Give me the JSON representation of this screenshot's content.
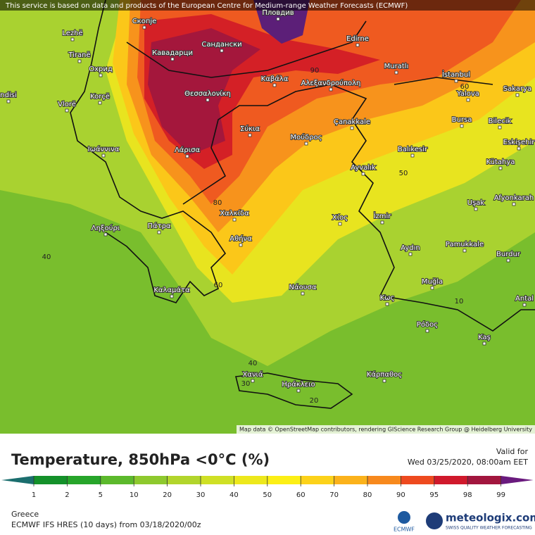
{
  "attribution_top": "This service is based on data and products of the European Centre for Medium-range Weather Forecasts (ECMWF)",
  "attribution_bottom": "Map data © OpenStreetMap contributors, rendering GIScience Research Group @ Heidelberg University",
  "cities": [
    "Lezhë",
    "Скопје",
    "Пловдив",
    "Edirne",
    "Tiranë",
    "Кавадарци",
    "Сандански",
    "Охрид",
    "Muratlı",
    "İstanbul",
    "Καβάλα",
    "Αλεξανδρούπολη",
    "Korçë",
    "Yalova",
    "Sakarya",
    "ndisi",
    "Θεσσαλονίκη",
    "Vlorë",
    "Çanakkale",
    "Bursa",
    "Bilecik",
    "Σύκια",
    "Μούδρος",
    "Balıkesir",
    "Eskişehir",
    "Ιωάννινα",
    "Λάρισα",
    "Kütahya",
    "Ayvalık",
    "Uşak",
    "Afyonkarah",
    "Χαλκίδα",
    "Ληξούρι",
    "Πάτρα",
    "Χίος",
    "İzmir",
    "Pamukkale",
    "Αθήνα",
    "Aydın",
    "Burdur",
    "Καλαμάτα",
    "Νάουσα",
    "Muğla",
    "Κως",
    "Antal",
    "Ρόδος",
    "Kaş",
    "Χανιά",
    "Κάρπαθος",
    "Ηράκλειο"
  ],
  "contour_labels": [
    90,
    60,
    50,
    80,
    40,
    60,
    40,
    30,
    20,
    10
  ],
  "legend": {
    "title": "Temperature, 850hPa <0°C (%)",
    "ticks": [
      1,
      2,
      5,
      10,
      20,
      30,
      40,
      50,
      60,
      70,
      80,
      90,
      95,
      98,
      99
    ],
    "colors": [
      "#1b6e6e",
      "#14912a",
      "#27a52a",
      "#5cb92c",
      "#8ec92e",
      "#b2d52c",
      "#cfe025",
      "#ede81c",
      "#fcef16",
      "#fcd21a",
      "#fbb21b",
      "#f7891d",
      "#ee4a1f",
      "#d0192c",
      "#a2163e",
      "#6a1a7e"
    ]
  },
  "valid_label": "Valid for",
  "valid_time": "Wed 03/25/2020, 08:00am EET",
  "region": "Greece",
  "model": "ECMWF IFS HRES (10 days) from 03/18/2020/00z",
  "logo_ecmwf": "ECMWF",
  "logo_site": "meteologix.com",
  "logo_tagline": "SWISS QUALITY WEATHER FORECASTING"
}
